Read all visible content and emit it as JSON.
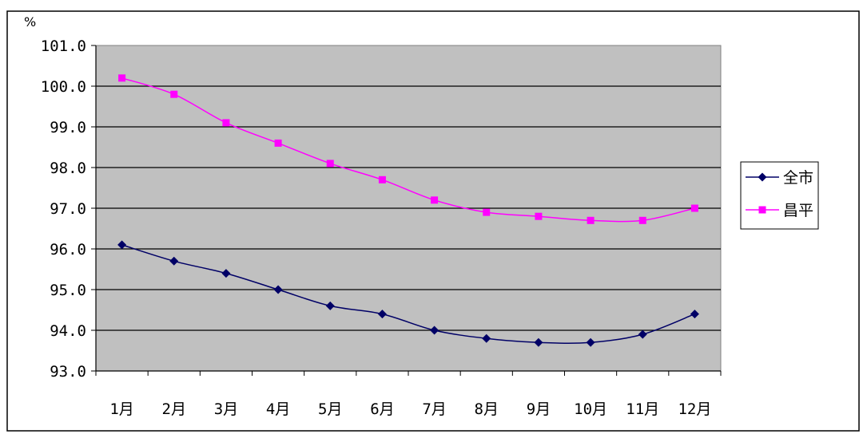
{
  "chart_data": {
    "type": "line",
    "title": "",
    "xlabel": "",
    "ylabel": "%",
    "ylim": [
      93.0,
      101.0
    ],
    "yticks": [
      "101.0",
      "100.0",
      "99.0",
      "98.0",
      "97.0",
      "96.0",
      "95.0",
      "94.0",
      "93.0"
    ],
    "categories": [
      "1月",
      "2月",
      "3月",
      "4月",
      "5月",
      "6月",
      "7月",
      "8月",
      "9月",
      "10月",
      "11月",
      "12月"
    ],
    "grid": true,
    "legend_position": "right",
    "plot_background": "#c0c0c0",
    "series": [
      {
        "name": "全市",
        "color": "#000066",
        "marker": "diamond",
        "values": [
          96.1,
          95.7,
          95.4,
          95.0,
          94.6,
          94.4,
          94.0,
          93.8,
          93.7,
          93.7,
          93.9,
          94.4
        ]
      },
      {
        "name": "昌平",
        "color": "#ff00ff",
        "marker": "square",
        "values": [
          100.2,
          99.8,
          99.1,
          98.6,
          98.1,
          97.7,
          97.2,
          96.9,
          96.8,
          96.7,
          96.7,
          97.0
        ]
      }
    ]
  }
}
